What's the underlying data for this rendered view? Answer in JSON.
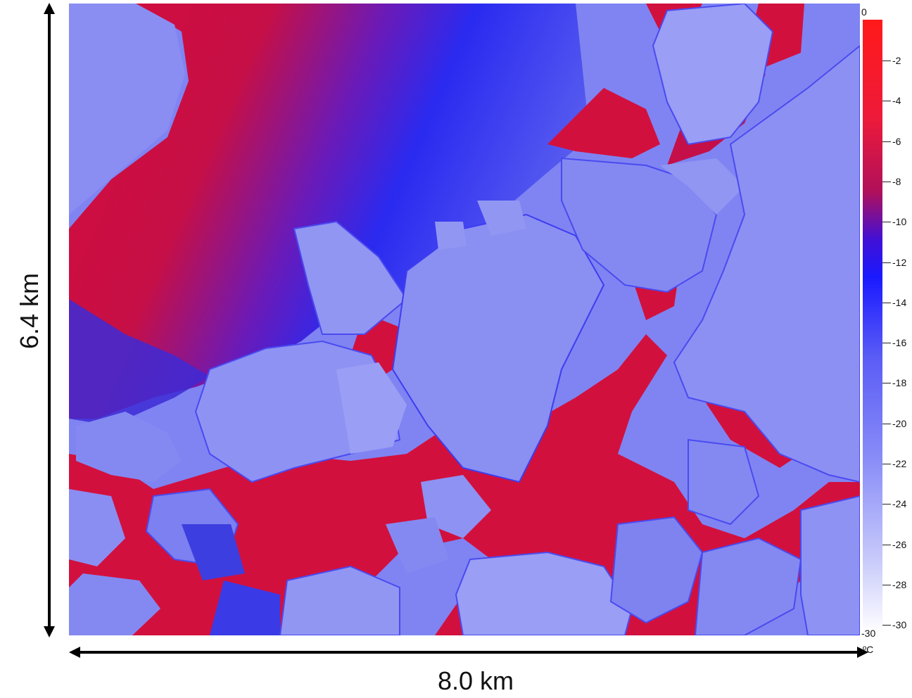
{
  "dimensions": {
    "height_label": "6.4 km",
    "width_label": "8.0 km"
  },
  "colorbar": {
    "top_value": "0",
    "bottom_value": "-30",
    "unit": "ºC",
    "tick_labels": [
      "-2",
      "-4",
      "-6",
      "-8",
      "-10",
      "-12",
      "-14",
      "-16",
      "-18",
      "-20",
      "-22",
      "-24",
      "-26",
      "-28",
      "-30"
    ],
    "colors": {
      "warm": "#e8103a",
      "mid": "#1a1aff",
      "cold": "#ffffff"
    }
  },
  "image": {
    "description_colors": {
      "ice_floe": "#8489f0",
      "open_water": "#d4103e",
      "transition": "#3a1ad8"
    }
  }
}
